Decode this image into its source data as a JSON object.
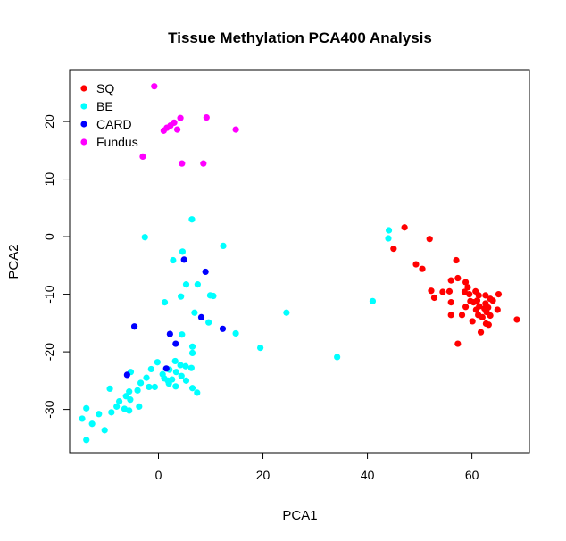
{
  "chart_data": {
    "type": "scatter",
    "title": "Tissue Methylation PCA400 Analysis",
    "xlabel": "PCA1",
    "ylabel": "PCA2",
    "xlim": [
      -17,
      71
    ],
    "ylim": [
      -37.5,
      29
    ],
    "xticks": [
      0,
      20,
      40,
      60
    ],
    "yticks": [
      -30,
      -20,
      -10,
      0,
      10,
      20
    ],
    "grid": false,
    "legend_position": "top-left",
    "series": [
      {
        "name": "SQ",
        "color": "#ff0000",
        "points": [
          [
            47.1,
            1.6
          ],
          [
            45.0,
            -2.1
          ],
          [
            51.9,
            -0.4
          ],
          [
            49.3,
            -4.8
          ],
          [
            50.5,
            -5.6
          ],
          [
            57.0,
            -4.1
          ],
          [
            52.2,
            -9.4
          ],
          [
            52.8,
            -10.6
          ],
          [
            54.4,
            -9.6
          ],
          [
            55.7,
            -9.5
          ],
          [
            56.0,
            -7.6
          ],
          [
            56.0,
            -11.4
          ],
          [
            57.3,
            -7.2
          ],
          [
            58.8,
            -7.9
          ],
          [
            59.2,
            -8.8
          ],
          [
            58.6,
            -9.6
          ],
          [
            59.5,
            -10.0
          ],
          [
            60.7,
            -9.5
          ],
          [
            59.7,
            -11.2
          ],
          [
            60.3,
            -11.4
          ],
          [
            61.3,
            -10.2
          ],
          [
            61.4,
            -12.1
          ],
          [
            62.6,
            -10.2
          ],
          [
            63.5,
            -10.8
          ],
          [
            62.6,
            -11.6
          ],
          [
            64.0,
            -11.1
          ],
          [
            65.1,
            -10.0
          ],
          [
            62.4,
            -12.5
          ],
          [
            62.8,
            -13.1
          ],
          [
            63.5,
            -13.7
          ],
          [
            64.9,
            -12.7
          ],
          [
            61.2,
            -13.6
          ],
          [
            60.1,
            -14.7
          ],
          [
            63.2,
            -15.3
          ],
          [
            61.7,
            -16.6
          ],
          [
            62.7,
            -15.1
          ],
          [
            58.1,
            -13.6
          ],
          [
            56.0,
            -13.6
          ],
          [
            57.3,
            -18.6
          ],
          [
            68.6,
            -14.4
          ],
          [
            62.0,
            -14.0
          ],
          [
            61.0,
            -11.1
          ],
          [
            58.8,
            -12.2
          ],
          [
            60.8,
            -12.7
          ],
          [
            63.1,
            -12.3
          ]
        ]
      },
      {
        "name": "BE",
        "color": "#00ffff",
        "points": [
          [
            6.4,
            3.0
          ],
          [
            44.1,
            1.1
          ],
          [
            44.0,
            -0.3
          ],
          [
            -2.6,
            -0.1
          ],
          [
            12.4,
            -1.6
          ],
          [
            4.6,
            -2.6
          ],
          [
            2.8,
            -4.1
          ],
          [
            7.5,
            -8.3
          ],
          [
            5.3,
            -8.3
          ],
          [
            1.2,
            -11.4
          ],
          [
            4.3,
            -10.4
          ],
          [
            9.9,
            -10.2
          ],
          [
            10.5,
            -10.3
          ],
          [
            41.0,
            -11.2
          ],
          [
            6.9,
            -13.2
          ],
          [
            24.5,
            -13.2
          ],
          [
            9.6,
            -14.9
          ],
          [
            14.8,
            -16.8
          ],
          [
            4.5,
            -17.0
          ],
          [
            19.5,
            -19.3
          ],
          [
            34.2,
            -20.9
          ],
          [
            6.5,
            -19.1
          ],
          [
            6.5,
            -20.2
          ],
          [
            -0.2,
            -21.8
          ],
          [
            3.2,
            -21.6
          ],
          [
            4.2,
            -22.3
          ],
          [
            5.2,
            -22.5
          ],
          [
            2.1,
            -23.1
          ],
          [
            6.3,
            -22.8
          ],
          [
            -1.4,
            -23.0
          ],
          [
            0.8,
            -23.9
          ],
          [
            3.4,
            -23.5
          ],
          [
            -5.3,
            -23.5
          ],
          [
            -2.3,
            -24.5
          ],
          [
            1.1,
            -24.6
          ],
          [
            4.4,
            -24.2
          ],
          [
            -3.4,
            -25.4
          ],
          [
            2.0,
            -25.5
          ],
          [
            5.3,
            -25.0
          ],
          [
            -1.8,
            -26.1
          ],
          [
            -0.7,
            -26.1
          ],
          [
            3.3,
            -26.0
          ],
          [
            6.5,
            -26.3
          ],
          [
            -4.0,
            -26.7
          ],
          [
            -9.3,
            -26.4
          ],
          [
            -5.6,
            -26.9
          ],
          [
            -6.2,
            -27.7
          ],
          [
            -5.4,
            -28.3
          ],
          [
            -7.5,
            -28.6
          ],
          [
            -3.7,
            -29.5
          ],
          [
            -8.0,
            -29.5
          ],
          [
            -6.5,
            -29.9
          ],
          [
            -5.6,
            -30.2
          ],
          [
            -9.0,
            -30.5
          ],
          [
            -11.4,
            -30.8
          ],
          [
            -13.8,
            -29.8
          ],
          [
            -14.6,
            -31.6
          ],
          [
            -12.7,
            -32.5
          ],
          [
            -10.3,
            -33.6
          ],
          [
            -13.8,
            -35.3
          ],
          [
            1.8,
            -25.0
          ],
          [
            2.6,
            -24.8
          ],
          [
            7.4,
            -27.1
          ]
        ]
      },
      {
        "name": "CARD",
        "color": "#0000ff",
        "points": [
          [
            4.9,
            -4.0
          ],
          [
            9.0,
            -6.1
          ],
          [
            8.2,
            -14.0
          ],
          [
            12.3,
            -16.0
          ],
          [
            -4.6,
            -15.6
          ],
          [
            2.2,
            -16.9
          ],
          [
            3.3,
            -18.6
          ],
          [
            1.5,
            -22.9
          ],
          [
            -6.0,
            -24.0
          ]
        ]
      },
      {
        "name": "Fundus",
        "color": "#ff00ff",
        "points": [
          [
            -0.8,
            26.1
          ],
          [
            4.2,
            20.6
          ],
          [
            9.2,
            20.7
          ],
          [
            14.8,
            18.6
          ],
          [
            3.0,
            19.8
          ],
          [
            2.3,
            19.3
          ],
          [
            1.6,
            18.9
          ],
          [
            1.0,
            18.4
          ],
          [
            3.6,
            18.6
          ],
          [
            -3.0,
            13.9
          ],
          [
            4.5,
            12.7
          ],
          [
            8.6,
            12.7
          ]
        ]
      }
    ]
  }
}
